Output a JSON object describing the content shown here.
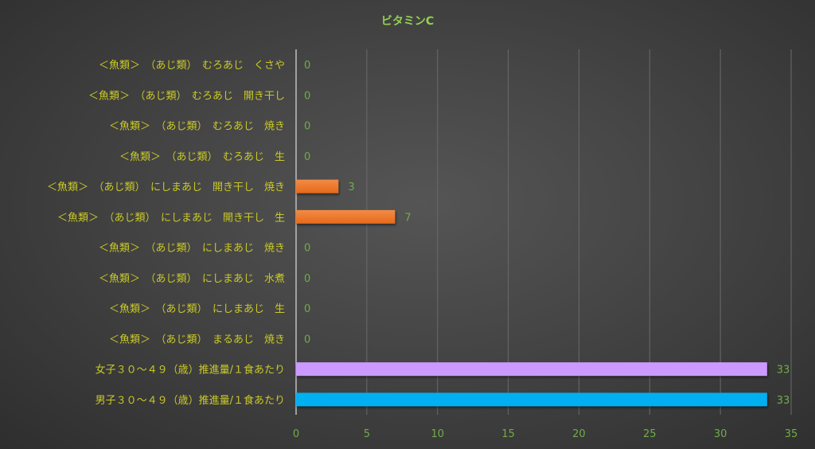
{
  "chart_data": {
    "type": "bar",
    "orientation": "horizontal",
    "title": "ビタミンC",
    "xlabel": "",
    "ylabel": "",
    "xlim": [
      0,
      35
    ],
    "x_ticks": [
      0,
      5,
      10,
      15,
      20,
      25,
      30,
      35
    ],
    "grid": "vertical",
    "legend": "none",
    "categories": [
      "＜魚類＞　（あじ類）　むろあじ　くさや",
      "＜魚類＞　（あじ類）　むろあじ　開き干し",
      "＜魚類＞　（あじ類）　むろあじ　焼き",
      "＜魚類＞　（あじ類）　むろあじ　生",
      "＜魚類＞　（あじ類）　にしまあじ　開き干し　焼き",
      "＜魚類＞　（あじ類）　にしまあじ　開き干し　生",
      "＜魚類＞　（あじ類）　にしまあじ　焼き",
      "＜魚類＞　（あじ類）　にしまあじ　水煮",
      "＜魚類＞　（あじ類）　にしまあじ　生",
      "＜魚類＞　（あじ類）　まるあじ　焼き",
      "女子３０～４９（歳）推進量/１食あたり",
      "男子３０～４９（歳）推進量/１食あたり"
    ],
    "values": [
      0,
      0,
      0,
      0,
      3,
      7,
      0,
      0,
      0,
      0,
      33.3,
      33.3
    ],
    "data_labels": [
      "0",
      "0",
      "0",
      "0",
      "3",
      "7",
      "0",
      "0",
      "0",
      "0",
      "33",
      "33"
    ],
    "bar_colors": [
      "#ed7d31",
      "#ed7d31",
      "#ed7d31",
      "#ed7d31",
      "#ed7d31",
      "#ed7d31",
      "#ed7d31",
      "#ed7d31",
      "#ed7d31",
      "#ed7d31",
      "#cc99ff",
      "#00b0f0"
    ]
  },
  "colors": {
    "title": "#92d050",
    "category_label": "#c9c928",
    "value_label": "#70ad47",
    "gridline": "#6a6a6a",
    "axis": "#bfbfbf"
  }
}
